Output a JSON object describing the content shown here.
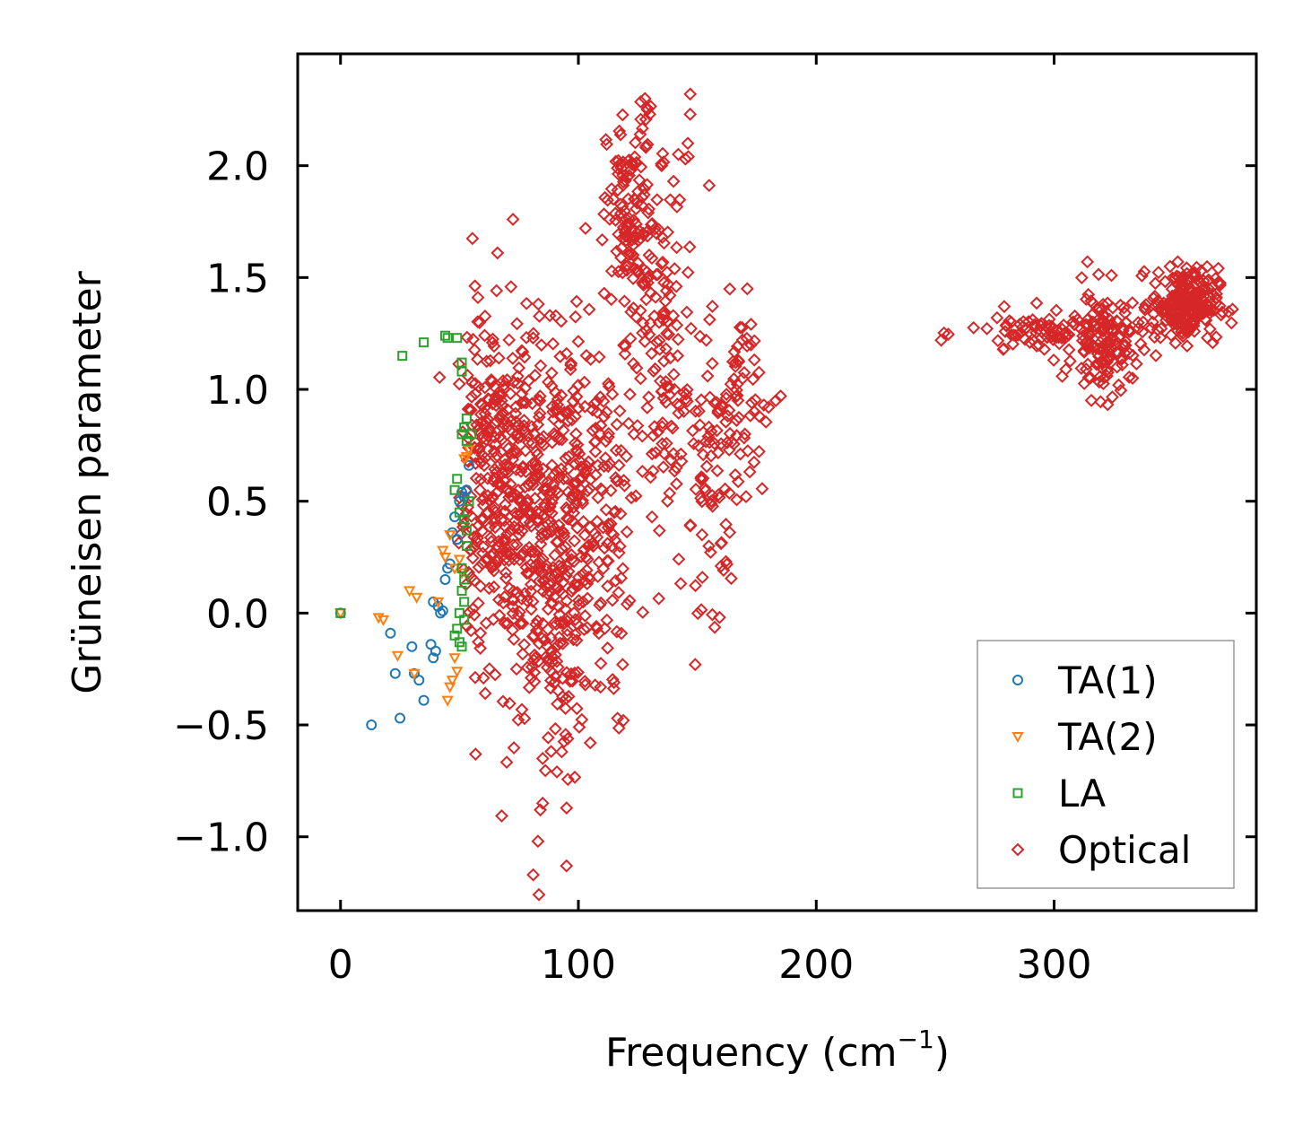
{
  "chart_data": {
    "type": "scatter",
    "title": "",
    "xlabel": "Frequency (cm",
    "xlabel_sup": "−1",
    "xlabel_close": ")",
    "ylabel": "Grüneisen parameter",
    "xlim": [
      -18,
      385
    ],
    "ylim": [
      -1.33,
      2.5
    ],
    "x_ticks": [
      0,
      100,
      200,
      300
    ],
    "x_tick_labels": [
      "0",
      "100",
      "200",
      "300"
    ],
    "y_ticks": [
      -1.0,
      -0.5,
      0.0,
      0.5,
      1.0,
      1.5,
      2.0
    ],
    "y_tick_labels": [
      "−1.0",
      "−0.5",
      "0.0",
      "0.5",
      "1.0",
      "1.5",
      "2.0"
    ],
    "grid": false,
    "legend_position": "bottom-right",
    "series": [
      {
        "name": "TA(1)",
        "marker": "circle",
        "color": "#1f77b4",
        "points": [
          [
            0,
            0.0
          ],
          [
            13,
            -0.5
          ],
          [
            21,
            -0.09
          ],
          [
            23,
            -0.27
          ],
          [
            25,
            -0.47
          ],
          [
            30,
            -0.15
          ],
          [
            31,
            -0.27
          ],
          [
            33,
            -0.3
          ],
          [
            35,
            -0.39
          ],
          [
            38,
            -0.14
          ],
          [
            39,
            -0.2
          ],
          [
            39,
            0.05
          ],
          [
            40,
            -0.17
          ],
          [
            41,
            0.03
          ],
          [
            42,
            0.0
          ],
          [
            43,
            0.01
          ],
          [
            44,
            0.15
          ],
          [
            45,
            0.2
          ],
          [
            46,
            0.22
          ],
          [
            47,
            0.36
          ],
          [
            48,
            0.43
          ],
          [
            49,
            0.33
          ],
          [
            50,
            0.5
          ],
          [
            51,
            0.54
          ],
          [
            52,
            0.52
          ],
          [
            53,
            0.55
          ],
          [
            54,
            0.66
          ]
        ]
      },
      {
        "name": "TA(2)",
        "marker": "triangle-down",
        "color": "#ff7f0e",
        "points": [
          [
            0,
            0.0
          ],
          [
            16,
            -0.02
          ],
          [
            18,
            -0.03
          ],
          [
            24,
            -0.19
          ],
          [
            29,
            0.1
          ],
          [
            32,
            0.07
          ],
          [
            31,
            -0.27
          ],
          [
            41,
            0.05
          ],
          [
            43,
            0.28
          ],
          [
            44,
            0.25
          ],
          [
            45,
            -0.39
          ],
          [
            46,
            -0.33
          ],
          [
            46,
            0.35
          ],
          [
            47,
            -0.3
          ],
          [
            48,
            0.2
          ],
          [
            48,
            -0.2
          ],
          [
            49,
            -0.26
          ],
          [
            50,
            0.24
          ],
          [
            51,
            0.18
          ],
          [
            52,
            0.69
          ],
          [
            53,
            0.7
          ],
          [
            54,
            0.73
          ]
        ]
      },
      {
        "name": "LA",
        "marker": "square",
        "color": "#2ca02c",
        "points": [
          [
            0,
            0.0
          ],
          [
            26,
            1.15
          ],
          [
            35,
            1.21
          ],
          [
            44,
            1.24
          ],
          [
            45,
            1.23
          ],
          [
            49,
            1.23
          ],
          [
            51,
            1.12
          ],
          [
            51,
            1.08
          ],
          [
            51,
            0.8
          ],
          [
            52,
            0.83
          ],
          [
            53,
            0.87
          ],
          [
            53,
            0.77
          ],
          [
            55,
            0.8
          ],
          [
            48,
            0.55
          ],
          [
            49,
            0.6
          ],
          [
            50,
            0.45
          ],
          [
            52,
            0.42
          ],
          [
            53,
            0.37
          ],
          [
            51,
            0.2
          ],
          [
            52,
            0.15
          ],
          [
            51,
            0.1
          ],
          [
            50,
            0.0
          ],
          [
            52,
            -0.03
          ],
          [
            49,
            -0.07
          ],
          [
            48,
            -0.1
          ],
          [
            50,
            -0.13
          ],
          [
            51,
            -0.15
          ],
          [
            52,
            0.05
          ],
          [
            53,
            0.3
          ],
          [
            54,
            0.5
          ]
        ]
      },
      {
        "name": "Optical",
        "marker": "diamond",
        "color": "#d62728",
        "clusters": [
          {
            "x": 58,
            "y": 0.55,
            "sx": 4,
            "sy": 0.45,
            "n": 90
          },
          {
            "x": 66,
            "y": 0.65,
            "sx": 7,
            "sy": 0.35,
            "n": 140
          },
          {
            "x": 76,
            "y": 0.45,
            "sx": 8,
            "sy": 0.4,
            "n": 160
          },
          {
            "x": 88,
            "y": 0.35,
            "sx": 8,
            "sy": 0.4,
            "n": 160
          },
          {
            "x": 92,
            "y": -0.2,
            "sx": 5,
            "sy": 0.3,
            "n": 60
          },
          {
            "x": 100,
            "y": 0.55,
            "sx": 8,
            "sy": 0.45,
            "n": 120
          },
          {
            "x": 110,
            "y": 0.35,
            "sx": 6,
            "sy": 0.45,
            "n": 90
          },
          {
            "x": 122,
            "y": 1.75,
            "sx": 5,
            "sy": 0.25,
            "n": 120
          },
          {
            "x": 134,
            "y": 1.55,
            "sx": 8,
            "sy": 0.3,
            "n": 70
          },
          {
            "x": 138,
            "y": 0.85,
            "sx": 8,
            "sy": 0.3,
            "n": 80
          },
          {
            "x": 158,
            "y": 0.65,
            "sx": 7,
            "sy": 0.3,
            "n": 80
          },
          {
            "x": 168,
            "y": 1.0,
            "sx": 4,
            "sy": 0.2,
            "n": 40
          },
          {
            "x": 300,
            "y": 1.25,
            "sx": 18,
            "sy": 0.05,
            "n": 100
          },
          {
            "x": 322,
            "y": 1.2,
            "sx": 7,
            "sy": 0.12,
            "n": 110
          },
          {
            "x": 355,
            "y": 1.38,
            "sx": 7,
            "sy": 0.08,
            "n": 220
          }
        ],
        "points": [
          [
            66,
            1.61
          ],
          [
            88,
            1.33
          ],
          [
            103,
            1.72
          ],
          [
            128,
            2.3
          ],
          [
            129,
            2.25
          ],
          [
            130,
            2.23
          ],
          [
            147,
            2.32
          ],
          [
            147,
            2.23
          ],
          [
            146,
            2.1
          ],
          [
            145,
            2.03
          ],
          [
            171,
            1.45
          ],
          [
            180,
            0.92
          ],
          [
            185,
            0.97
          ],
          [
            81,
            -1.17
          ],
          [
            95,
            -1.13
          ],
          [
            83,
            -1.02
          ],
          [
            84,
            -0.88
          ],
          [
            85,
            -0.85
          ],
          [
            85,
            -0.65
          ],
          [
            93,
            -0.62
          ],
          [
            105,
            -0.58
          ],
          [
            122,
            1.98
          ],
          [
            126,
            2.14
          ],
          [
            135,
            2.0
          ],
          [
            140,
            1.93
          ],
          [
            115,
            -0.31
          ],
          [
            95,
            1.16
          ],
          [
            160,
            0.21
          ],
          [
            162,
            0.23
          ],
          [
            152,
            0.35
          ],
          [
            314,
            1.57
          ],
          [
            352,
            1.57
          ],
          [
            333,
            1.05
          ],
          [
            360,
            1.33
          ],
          [
            365,
            1.45
          ],
          [
            276,
            1.32
          ],
          [
            174,
            0.9
          ],
          [
            178,
            0.93
          ],
          [
            183,
            0.95
          ],
          [
            176,
            0.88
          ],
          [
            170,
            0.8
          ],
          [
            74,
            -0.25
          ]
        ]
      }
    ]
  }
}
